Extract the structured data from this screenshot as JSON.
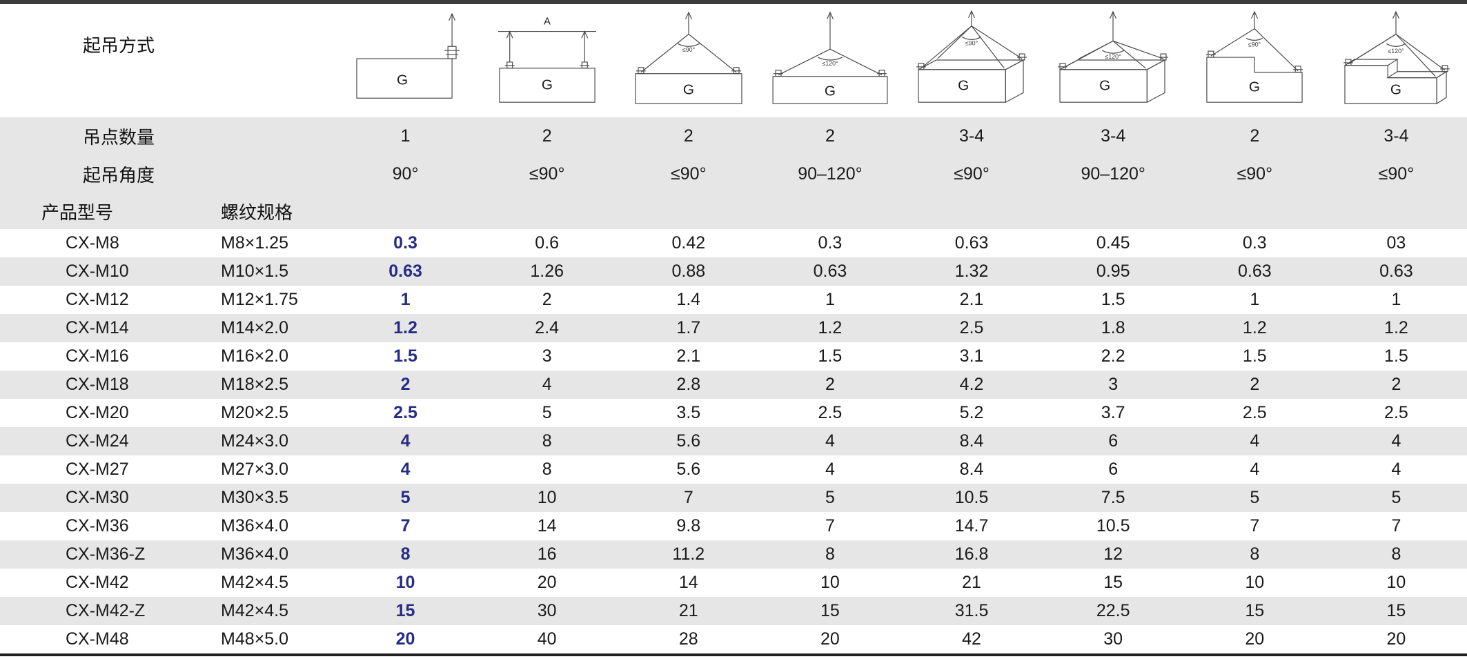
{
  "labels": {
    "lift_method": "起吊方式",
    "point_count": "吊点数量",
    "lift_angle": "起吊角度",
    "model": "产品型号",
    "thread": "螺纹规格"
  },
  "columns": [
    {
      "diagram": "single-point-vertical",
      "points": "1",
      "angle": "90°",
      "load_label": "G",
      "dim_label": "",
      "angle_label": ""
    },
    {
      "diagram": "two-point-parallel",
      "points": "2",
      "angle": "≤90°",
      "load_label": "G",
      "dim_label": "A",
      "angle_label": ""
    },
    {
      "diagram": "two-point-sling-90",
      "points": "2",
      "angle": "≤90°",
      "load_label": "G",
      "dim_label": "",
      "angle_label": "≤90°"
    },
    {
      "diagram": "two-point-sling-120",
      "points": "2",
      "angle": "90–120°",
      "load_label": "G",
      "dim_label": "",
      "angle_label": "≤120°"
    },
    {
      "diagram": "four-point-box-90",
      "points": "3-4",
      "angle": "≤90°",
      "load_label": "G",
      "dim_label": "",
      "angle_label": "≤90°"
    },
    {
      "diagram": "four-point-box-120",
      "points": "3-4",
      "angle": "90–120°",
      "load_label": "G",
      "dim_label": "",
      "angle_label": "≤120°"
    },
    {
      "diagram": "two-point-stepped-90",
      "points": "2",
      "angle": "≤90°",
      "load_label": "G",
      "dim_label": "",
      "angle_label": "≤90°"
    },
    {
      "diagram": "four-point-stepped-120",
      "points": "3-4",
      "angle": "≤90°",
      "load_label": "G",
      "dim_label": "",
      "angle_label": "≤120°"
    }
  ],
  "rows": [
    {
      "model": "CX-M8",
      "thread": "M8×1.25",
      "values": [
        "0.3",
        "0.6",
        "0.42",
        "0.3",
        "0.63",
        "0.45",
        "0.3",
        "03"
      ]
    },
    {
      "model": "CX-M10",
      "thread": "M10×1.5",
      "values": [
        "0.63",
        "1.26",
        "0.88",
        "0.63",
        "1.32",
        "0.95",
        "0.63",
        "0.63"
      ]
    },
    {
      "model": "CX-M12",
      "thread": "M12×1.75",
      "values": [
        "1",
        "2",
        "1.4",
        "1",
        "2.1",
        "1.5",
        "1",
        "1"
      ]
    },
    {
      "model": "CX-M14",
      "thread": "M14×2.0",
      "values": [
        "1.2",
        "2.4",
        "1.7",
        "1.2",
        "2.5",
        "1.8",
        "1.2",
        "1.2"
      ]
    },
    {
      "model": "CX-M16",
      "thread": "M16×2.0",
      "values": [
        "1.5",
        "3",
        "2.1",
        "1.5",
        "3.1",
        "2.2",
        "1.5",
        "1.5"
      ]
    },
    {
      "model": "CX-M18",
      "thread": "M18×2.5",
      "values": [
        "2",
        "4",
        "2.8",
        "2",
        "4.2",
        "3",
        "2",
        "2"
      ]
    },
    {
      "model": "CX-M20",
      "thread": "M20×2.5",
      "values": [
        "2.5",
        "5",
        "3.5",
        "2.5",
        "5.2",
        "3.7",
        "2.5",
        "2.5"
      ]
    },
    {
      "model": "CX-M24",
      "thread": "M24×3.0",
      "values": [
        "4",
        "8",
        "5.6",
        "4",
        "8.4",
        "6",
        "4",
        "4"
      ]
    },
    {
      "model": "CX-M27",
      "thread": "M27×3.0",
      "values": [
        "4",
        "8",
        "5.6",
        "4",
        "8.4",
        "6",
        "4",
        "4"
      ]
    },
    {
      "model": "CX-M30",
      "thread": "M30×3.5",
      "values": [
        "5",
        "10",
        "7",
        "5",
        "10.5",
        "7.5",
        "5",
        "5"
      ]
    },
    {
      "model": "CX-M36",
      "thread": "M36×4.0",
      "values": [
        "7",
        "14",
        "9.8",
        "7",
        "14.7",
        "10.5",
        "7",
        "7"
      ]
    },
    {
      "model": "CX-M36-Z",
      "thread": "M36×4.0",
      "values": [
        "8",
        "16",
        "11.2",
        "8",
        "16.8",
        "12",
        "8",
        "8"
      ]
    },
    {
      "model": "CX-M42",
      "thread": "M42×4.5",
      "values": [
        "10",
        "20",
        "14",
        "10",
        "21",
        "15",
        "10",
        "10"
      ]
    },
    {
      "model": "CX-M42-Z",
      "thread": "M42×4.5",
      "values": [
        "15",
        "30",
        "21",
        "15",
        "31.5",
        "22.5",
        "15",
        "15"
      ]
    },
    {
      "model": "CX-M48",
      "thread": "M48×5.0",
      "values": [
        "20",
        "40",
        "28",
        "20",
        "42",
        "30",
        "20",
        "20"
      ]
    }
  ],
  "colors": {
    "accent_blue": "#262c87",
    "stripe_gray": "#e6e6e6",
    "bar_dark": "#3c3c3c",
    "diagram_stroke": "#4a4a4a"
  }
}
